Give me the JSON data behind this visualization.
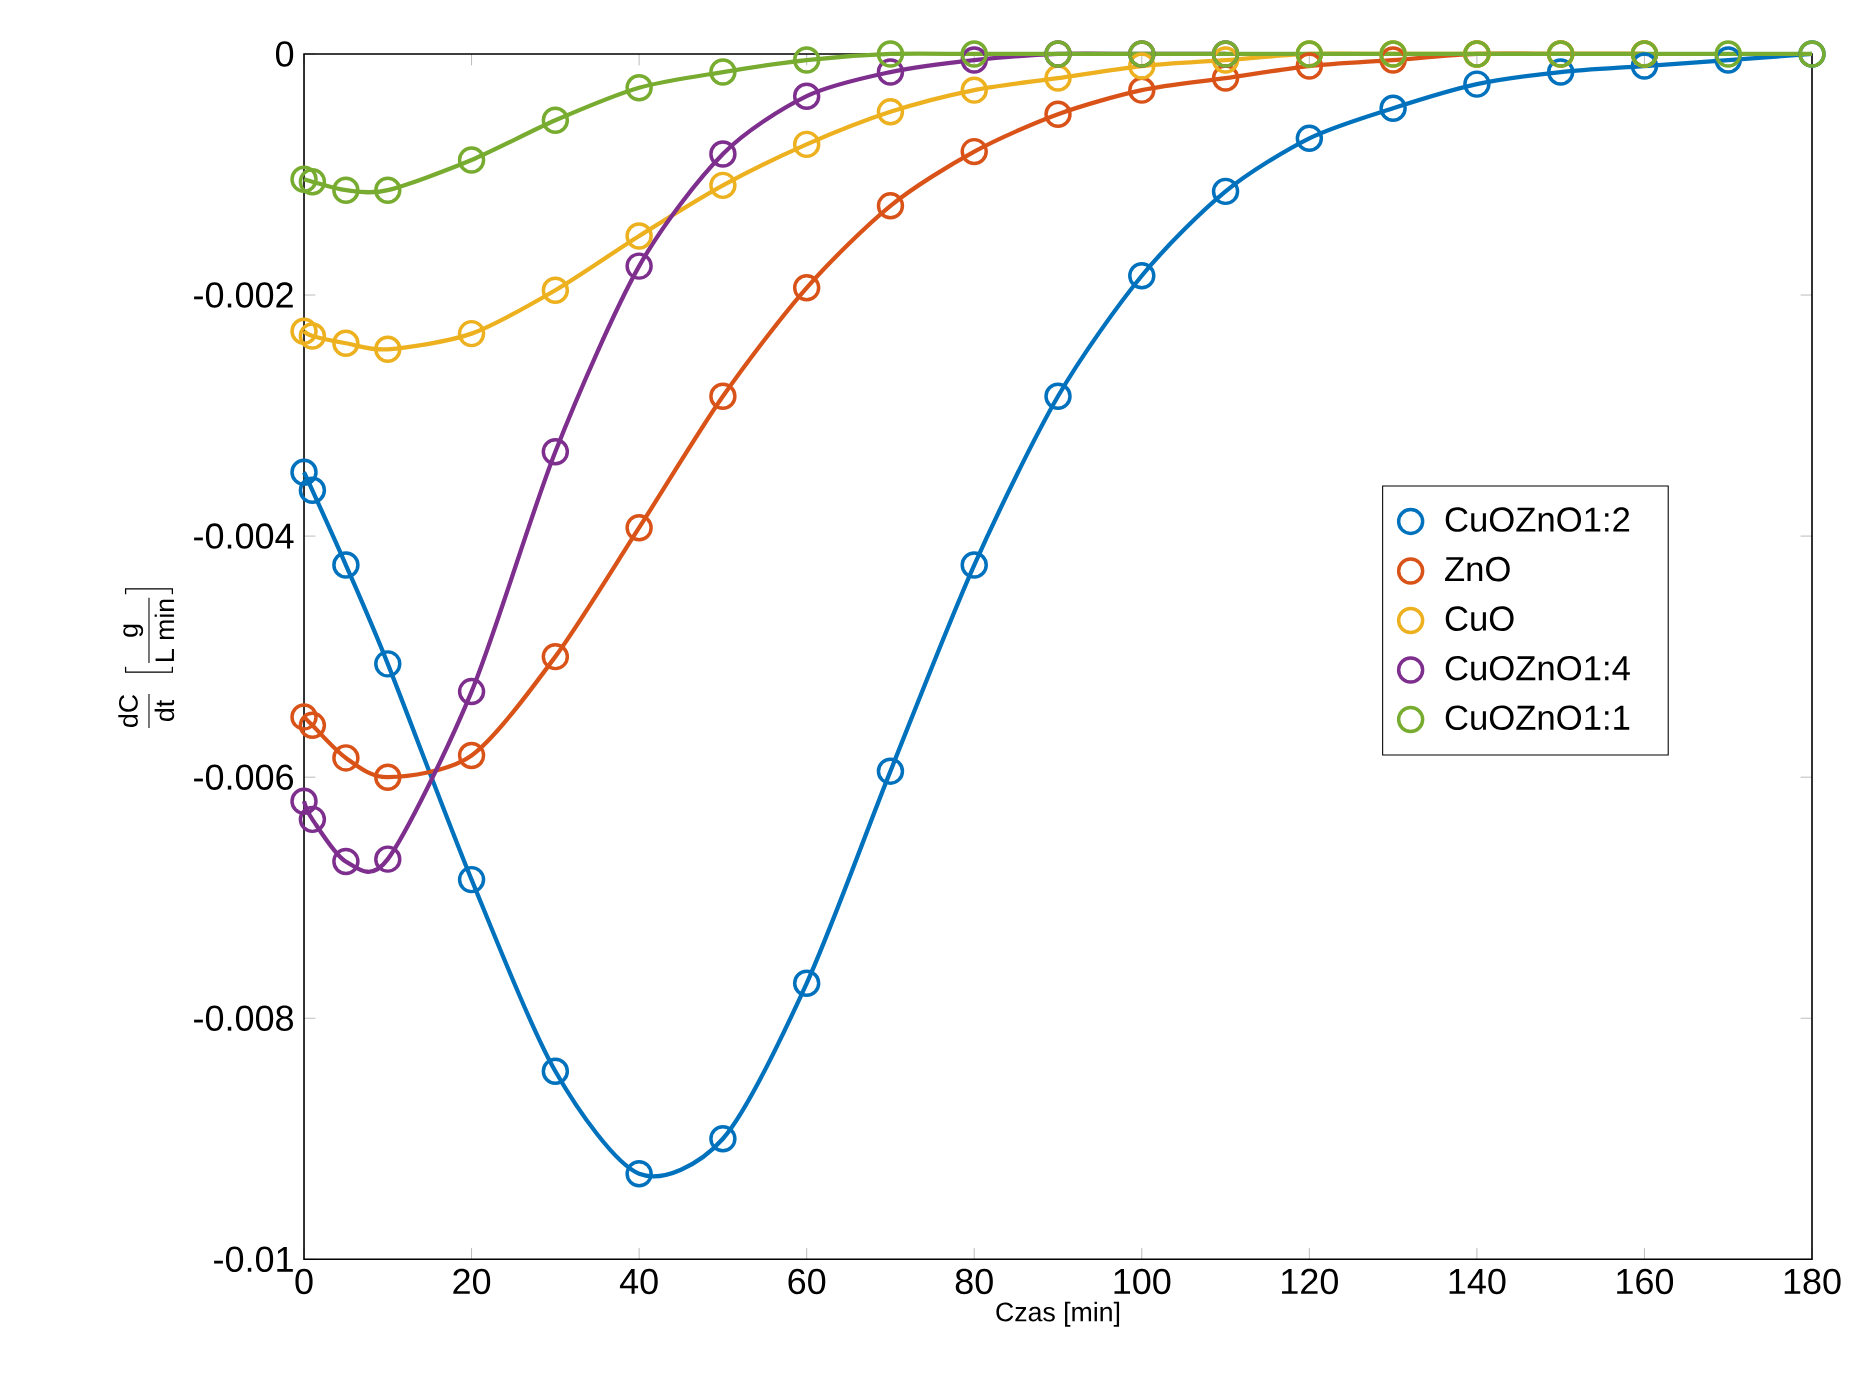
{
  "chart_data": {
    "type": "line",
    "xlabel": "Czas [min]",
    "ylabel": "\\frac{\\mathrm{dC}}{\\mathrm{dt}}\\;\\left[\\frac{\\mathrm{g}}{\\mathrm{L\\ min}}\\right]",
    "x": [
      0,
      1,
      5,
      10,
      20,
      30,
      40,
      50,
      60,
      70,
      80,
      90,
      100,
      110,
      120,
      130,
      140,
      150,
      160,
      170,
      180
    ],
    "series": [
      {
        "name": "CuOZnO1:2",
        "color": "#0072bd",
        "values": [
          -0.00347,
          -0.00362,
          -0.00424,
          -0.00506,
          -0.00685,
          -0.00844,
          -0.00929,
          -0.009,
          -0.00771,
          -0.00595,
          -0.00424,
          -0.00284,
          -0.00184,
          -0.00114,
          -0.0007,
          -0.00045,
          -0.00025,
          -0.00015,
          -0.0001,
          -5e-05,
          0
        ]
      },
      {
        "name": "ZnO",
        "color": "#d95319",
        "values": [
          -0.0055,
          -0.00557,
          -0.00584,
          -0.006,
          -0.00582,
          -0.005,
          -0.00393,
          -0.00284,
          -0.00194,
          -0.00126,
          -0.00081,
          -0.0005,
          -0.0003,
          -0.0002,
          -0.0001,
          -5e-05,
          0,
          0,
          0,
          null,
          null
        ]
      },
      {
        "name": "CuO",
        "color": "#edb120",
        "values": [
          -0.0023,
          -0.00234,
          -0.0024,
          -0.00245,
          -0.00232,
          -0.00196,
          -0.00151,
          -0.00109,
          -0.00075,
          -0.00048,
          -0.0003,
          -0.0002,
          -0.0001,
          -5e-05,
          0,
          0,
          0,
          0,
          0,
          null,
          null
        ]
      },
      {
        "name": "CuOZnO1:4",
        "color": "#7e2f8e",
        "values": [
          -0.0062,
          -0.00635,
          -0.0067,
          -0.00668,
          -0.00529,
          -0.0033,
          -0.00176,
          -0.00083,
          -0.00035,
          -0.00015,
          -5e-05,
          0,
          0,
          0,
          null,
          null,
          null,
          null,
          null,
          null,
          null
        ]
      },
      {
        "name": "CuOZnO1:1",
        "color": "#77ac30",
        "values": [
          -0.00104,
          -0.00106,
          -0.00113,
          -0.00113,
          -0.00088,
          -0.00055,
          -0.00028,
          -0.00015,
          -5e-05,
          0,
          0,
          0,
          0,
          0,
          0,
          0,
          0,
          0,
          0,
          0,
          0
        ]
      }
    ],
    "xlim": [
      0,
      180
    ],
    "ylim": [
      -0.01,
      0
    ],
    "xticks": [
      0,
      20,
      40,
      60,
      80,
      100,
      120,
      140,
      160,
      180
    ],
    "yticks": [
      -0.01,
      -0.008,
      -0.006,
      -0.004,
      -0.002,
      0
    ],
    "marker": "circle",
    "grid": false,
    "legend": "right"
  }
}
